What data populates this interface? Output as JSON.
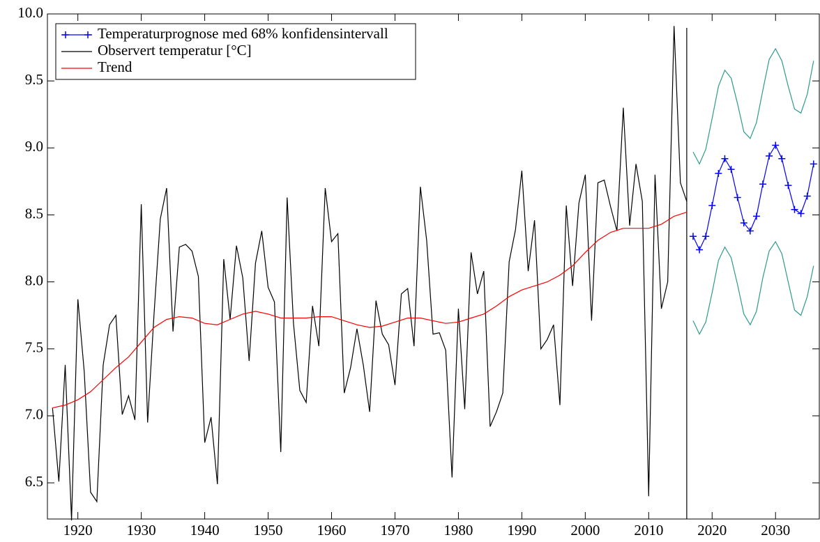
{
  "chart_data": {
    "type": "line",
    "xlim": [
      1915.2,
      2036.9
    ],
    "ylim": [
      6.23,
      10.0
    ],
    "xticks": [
      1920,
      1930,
      1940,
      1950,
      1960,
      1970,
      1980,
      1990,
      2000,
      2010,
      2020,
      2030
    ],
    "yticks": [
      {
        "value": 6.5,
        "label": "6.5"
      },
      {
        "value": 7,
        "label": "7.0"
      },
      7.5,
      {
        "value": 8,
        "label": "8.0"
      },
      8.5,
      {
        "value": 9,
        "label": "9.0"
      },
      9.5,
      {
        "value": 10,
        "label": "10.0"
      }
    ],
    "vline": 2016,
    "legend": "upper left",
    "series": [
      {
        "name": "Temperaturprognose med 68% konfidensintervall",
        "color": "#0000ff",
        "marker": "+",
        "x": [
          2017,
          2018,
          2019,
          2020,
          2021,
          2022,
          2023,
          2024,
          2025,
          2026,
          2027,
          2028,
          2029,
          2030,
          2031,
          2032,
          2033,
          2034,
          2035,
          2036
        ],
        "values": [
          8.34,
          8.24,
          8.34,
          8.57,
          8.81,
          8.92,
          8.84,
          8.63,
          8.44,
          8.38,
          8.49,
          8.73,
          8.94,
          9.02,
          8.92,
          8.72,
          8.54,
          8.51,
          8.64,
          8.88
        ]
      },
      {
        "name": "Observert temperatur [°C]",
        "color": "#000000",
        "x": [
          1916,
          1917,
          1918,
          1919,
          1920,
          1921,
          1922,
          1923,
          1924,
          1925,
          1926,
          1927,
          1928,
          1929,
          1930,
          1931,
          1932,
          1933,
          1934,
          1935,
          1936,
          1937,
          1938,
          1939,
          1940,
          1941,
          1942,
          1943,
          1944,
          1945,
          1946,
          1947,
          1948,
          1949,
          1950,
          1951,
          1952,
          1953,
          1954,
          1955,
          1956,
          1957,
          1958,
          1959,
          1960,
          1961,
          1962,
          1963,
          1964,
          1965,
          1966,
          1967,
          1968,
          1969,
          1970,
          1971,
          1972,
          1973,
          1974,
          1975,
          1976,
          1977,
          1978,
          1979,
          1980,
          1981,
          1982,
          1983,
          1984,
          1985,
          1986,
          1987,
          1988,
          1989,
          1990,
          1991,
          1992,
          1993,
          1994,
          1995,
          1996,
          1997,
          1998,
          1999,
          2000,
          2001,
          2002,
          2003,
          2004,
          2005,
          2006,
          2007,
          2008,
          2009,
          2010,
          2011,
          2012,
          2013,
          2014,
          2015,
          2016
        ],
        "values": [
          7.06,
          6.51,
          7.38,
          6.22,
          7.87,
          7.33,
          6.43,
          6.36,
          7.38,
          7.68,
          7.75,
          7.01,
          7.15,
          6.97,
          8.58,
          6.95,
          7.75,
          8.47,
          8.7,
          7.63,
          8.26,
          8.28,
          8.23,
          8.04,
          6.8,
          6.99,
          6.49,
          8.17,
          7.72,
          8.27,
          8.03,
          7.41,
          8.14,
          8.38,
          7.96,
          7.85,
          6.73,
          8.63,
          7.69,
          7.19,
          7.1,
          7.82,
          7.52,
          8.7,
          8.3,
          8.36,
          7.17,
          7.36,
          7.65,
          7.38,
          7.03,
          7.86,
          7.61,
          7.53,
          7.23,
          7.91,
          7.95,
          7.52,
          8.71,
          8.31,
          7.61,
          7.62,
          7.49,
          6.54,
          7.8,
          7.05,
          8.22,
          7.91,
          8.08,
          6.92,
          7.03,
          7.17,
          8.15,
          8.39,
          8.83,
          8.08,
          8.46,
          7.5,
          7.57,
          7.68,
          7.08,
          8.57,
          7.97,
          8.59,
          8.8,
          7.71,
          8.74,
          8.76,
          8.56,
          8.38,
          9.3,
          8.42,
          8.88,
          8.6,
          6.4,
          8.8,
          7.8,
          8.0,
          9.91,
          8.74,
          8.6
        ]
      },
      {
        "name": "Trend",
        "color": "#ff0000",
        "x": [
          1916,
          1918,
          1920,
          1922,
          1924,
          1926,
          1928,
          1930,
          1932,
          1934,
          1936,
          1938,
          1940,
          1942,
          1944,
          1946,
          1948,
          1950,
          1952,
          1954,
          1956,
          1958,
          1960,
          1962,
          1964,
          1966,
          1968,
          1970,
          1972,
          1974,
          1976,
          1978,
          1980,
          1982,
          1984,
          1986,
          1988,
          1990,
          1992,
          1994,
          1996,
          1998,
          2000,
          2002,
          2004,
          2006,
          2008,
          2010,
          2012,
          2014,
          2016
        ],
        "values": [
          7.06,
          7.08,
          7.12,
          7.18,
          7.27,
          7.36,
          7.44,
          7.55,
          7.66,
          7.72,
          7.74,
          7.73,
          7.69,
          7.68,
          7.72,
          7.76,
          7.78,
          7.76,
          7.73,
          7.73,
          7.73,
          7.74,
          7.74,
          7.71,
          7.68,
          7.66,
          7.67,
          7.7,
          7.73,
          7.73,
          7.71,
          7.69,
          7.7,
          7.73,
          7.76,
          7.82,
          7.89,
          7.94,
          7.97,
          8.0,
          8.05,
          8.12,
          8.22,
          8.31,
          8.37,
          8.4,
          8.4,
          8.4,
          8.43,
          8.49,
          8.52
        ]
      },
      {
        "color": "#2e9a8c",
        "x": [
          2017,
          2018,
          2019,
          2020,
          2021,
          2022,
          2023,
          2024,
          2025,
          2026,
          2027,
          2028,
          2029,
          2030,
          2031,
          2032,
          2033,
          2034,
          2035,
          2036
        ],
        "values": [
          8.97,
          8.88,
          8.99,
          9.22,
          9.46,
          9.58,
          9.52,
          9.33,
          9.12,
          9.07,
          9.19,
          9.43,
          9.66,
          9.74,
          9.65,
          9.46,
          9.29,
          9.26,
          9.4,
          9.65
        ]
      },
      {
        "color": "#2e9a8c",
        "x": [
          2017,
          2018,
          2019,
          2020,
          2021,
          2022,
          2023,
          2024,
          2025,
          2026,
          2027,
          2028,
          2029,
          2030,
          2031,
          2032,
          2033,
          2034,
          2035,
          2036
        ],
        "values": [
          7.71,
          7.61,
          7.7,
          7.92,
          8.16,
          8.26,
          8.18,
          7.98,
          7.76,
          7.68,
          7.78,
          8.03,
          8.23,
          8.3,
          8.21,
          8.0,
          7.79,
          7.75,
          7.89,
          8.12
        ]
      }
    ]
  }
}
